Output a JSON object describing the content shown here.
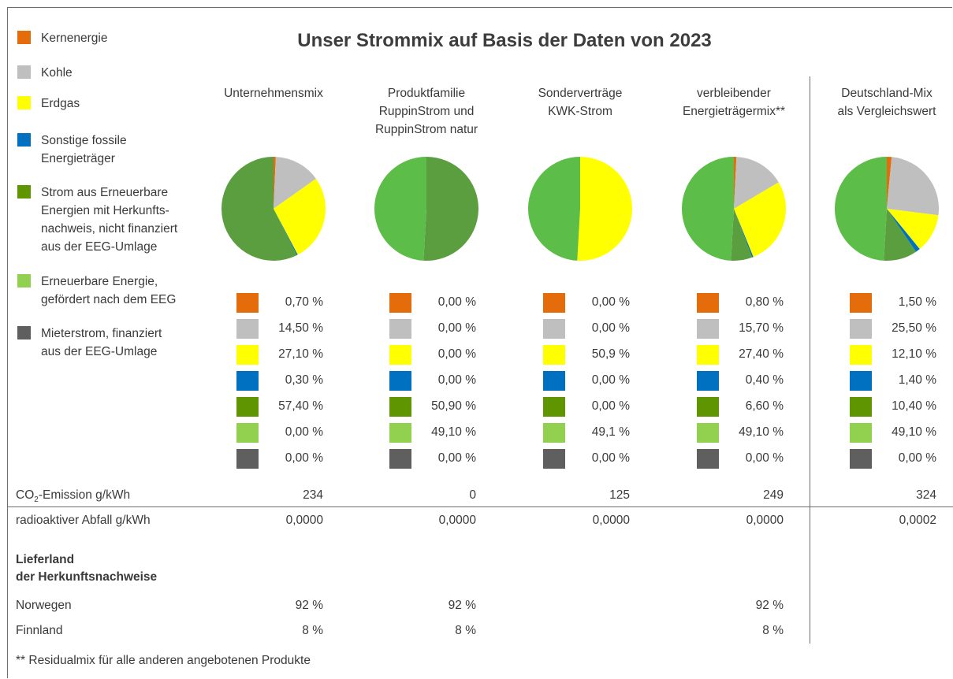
{
  "title": "Unser Strommix auf Basis der Daten von 2023",
  "colors": {
    "kernenergie": "#E46C0A",
    "kohle": "#BFBFBF",
    "erdgas": "#FFFF00",
    "sonstige_fossile": "#0070C0",
    "strom_erneuerbar_hkn": "#5F9600",
    "erneuerbar_eeg": "#92D050",
    "mieterstrom": "#5F5F5F"
  },
  "legend": [
    {
      "label": "Kernenergie",
      "color": "#E46C0A"
    },
    {
      "label": "Kohle",
      "color": "#BFBFBF"
    },
    {
      "label": "Erdgas",
      "color": "#FFFF00"
    },
    {
      "label": "Sonstige fossile\nEnergieträger",
      "color": "#0070C0"
    },
    {
      "label": "Strom aus Erneuerbare\nEnergien mit Herkunfts-\nnachweis, nicht finanziert\naus der EEG-Umlage",
      "color": "#5F9600"
    },
    {
      "label": "Erneuerbare Energie,\ngefördert nach dem EEG",
      "color": "#92D050"
    },
    {
      "label": "Mieterstrom, finanziert\naus der EEG-Umlage",
      "color": "#5F5F5F"
    }
  ],
  "chart_data": {
    "type": "pie",
    "title": "Unser Strommix auf Basis der Daten von 2023",
    "categories": [
      "Kernenergie",
      "Kohle",
      "Erdgas",
      "Sonstige fossile Energieträger",
      "Strom aus Erneuerbare Energien mit Herkunftsnachweis, nicht finanziert aus der EEG-Umlage",
      "Erneuerbare Energie, gefördert nach dem EEG",
      "Mieterstrom, finanziert aus der EEG-Umlage"
    ],
    "columns": [
      {
        "header": "Unternehmensmix",
        "values": [
          0.7,
          14.5,
          27.1,
          0.3,
          57.4,
          0.0,
          0.0
        ],
        "labels": [
          "0,70 %",
          "14,50 %",
          "27,10 %",
          "0,30 %",
          "57,40 %",
          "0,00 %",
          "0,00 %"
        ],
        "pie_colors": [
          "#E46C0A",
          "#BFBFBF",
          "#FFFF00",
          "#0070C0",
          "#5B9E3F",
          "#5CBD48",
          "#5F5F5F"
        ],
        "co2": "234",
        "abfall": "0,0000",
        "norwegen": "92 %",
        "finnland": "8 %"
      },
      {
        "header": "Produktfamilie\nRuppinStrom und\nRuppinStrom natur",
        "values": [
          0.0,
          0.0,
          0.0,
          0.0,
          50.9,
          49.1,
          0.0
        ],
        "labels": [
          "0,00 %",
          "0,00 %",
          "0,00 %",
          "0,00 %",
          "50,90 %",
          "49,10 %",
          "0,00 %"
        ],
        "pie_colors": [
          "#E46C0A",
          "#BFBFBF",
          "#FFFF00",
          "#0070C0",
          "#5B9E3F",
          "#5CBD48",
          "#5F5F5F"
        ],
        "co2": "0",
        "abfall": "0,0000",
        "norwegen": "92 %",
        "finnland": "8 %"
      },
      {
        "header": "Sonderverträge\nKWK-Strom",
        "values": [
          0.0,
          0.0,
          50.9,
          0.0,
          0.0,
          49.1,
          0.0
        ],
        "labels": [
          "0,00 %",
          "0,00 %",
          "50,9 %",
          "0,00 %",
          "0,00 %",
          "49,1 %",
          "0,00 %"
        ],
        "pie_colors": [
          "#E46C0A",
          "#BFBFBF",
          "#FFFF00",
          "#0070C0",
          "#5B9E3F",
          "#5CBD48",
          "#5F5F5F"
        ],
        "co2": "125",
        "abfall": "0,0000",
        "norwegen": "",
        "finnland": ""
      },
      {
        "header": "verbleibender\nEnergieträgermix**",
        "values": [
          0.8,
          15.7,
          27.4,
          0.4,
          6.6,
          49.1,
          0.0
        ],
        "labels": [
          "0,80 %",
          "15,70 %",
          "27,40 %",
          "0,40 %",
          "6,60 %",
          "49,10 %",
          "0,00 %"
        ],
        "pie_colors": [
          "#E46C0A",
          "#BFBFBF",
          "#FFFF00",
          "#0070C0",
          "#5B9E3F",
          "#5CBD48",
          "#5F5F5F"
        ],
        "co2": "249",
        "abfall": "0,0000",
        "norwegen": "92 %",
        "finnland": "8 %"
      },
      {
        "header": "Deutschland-Mix\nals Vergleichswert",
        "values": [
          1.5,
          25.5,
          12.1,
          1.4,
          10.4,
          49.1,
          0.0
        ],
        "labels": [
          "1,50 %",
          "25,50 %",
          "12,10 %",
          "1,40 %",
          "10,40 %",
          "49,10 %",
          "0,00 %"
        ],
        "pie_colors": [
          "#E46C0A",
          "#BFBFBF",
          "#FFFF00",
          "#0070C0",
          "#5B9E3F",
          "#5CBD48",
          "#5F5F5F"
        ],
        "co2": "324",
        "abfall": "0,0002",
        "norwegen": "",
        "finnland": ""
      }
    ]
  },
  "rows": {
    "co2_label_main": "CO",
    "co2_label_sub": "2",
    "co2_label_rest": "-Emission g/kWh",
    "abfall_label": "radioaktiver Abfall g/kWh",
    "lieferland_line1": "Lieferland",
    "lieferland_line2": "der Herkunftsnachweise",
    "norwegen_label": "Norwegen",
    "finnland_label": "Finnland"
  },
  "footnote": "** Residualmix für alle anderen angebotenen Produkte"
}
